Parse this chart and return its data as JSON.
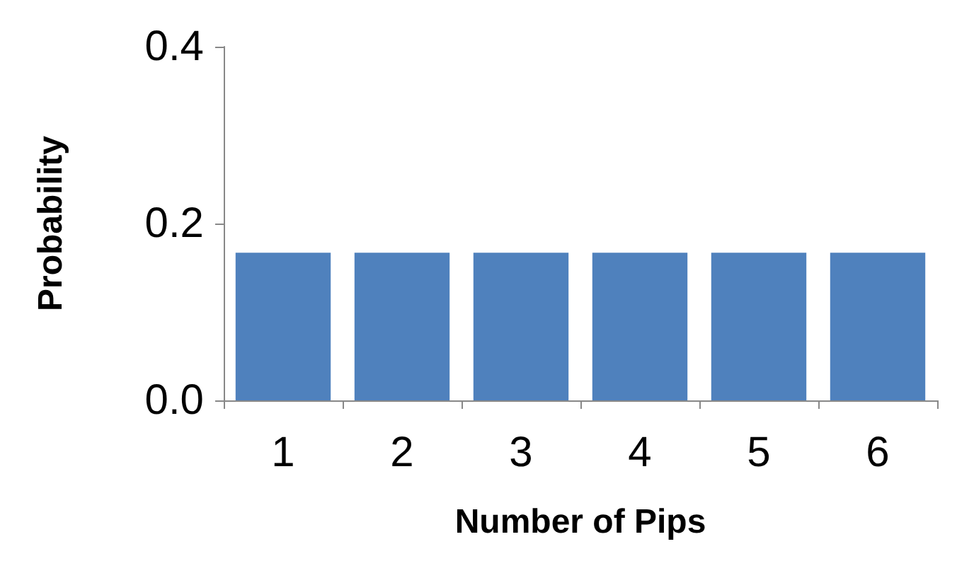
{
  "chart_data": {
    "type": "bar",
    "xlabel": "Number of Pips",
    "ylabel": "Probability",
    "categories": [
      "1",
      "2",
      "3",
      "4",
      "5",
      "6"
    ],
    "values": [
      0.167,
      0.167,
      0.167,
      0.167,
      0.167,
      0.167
    ],
    "color": "#4f81bd",
    "ylim": [
      0,
      0.4
    ],
    "yticks": [
      {
        "value": 0,
        "label": "0.0"
      },
      {
        "value": 0.2,
        "label": "0.2"
      },
      {
        "value": 0.4,
        "label": "0.4"
      }
    ],
    "grid": false
  }
}
